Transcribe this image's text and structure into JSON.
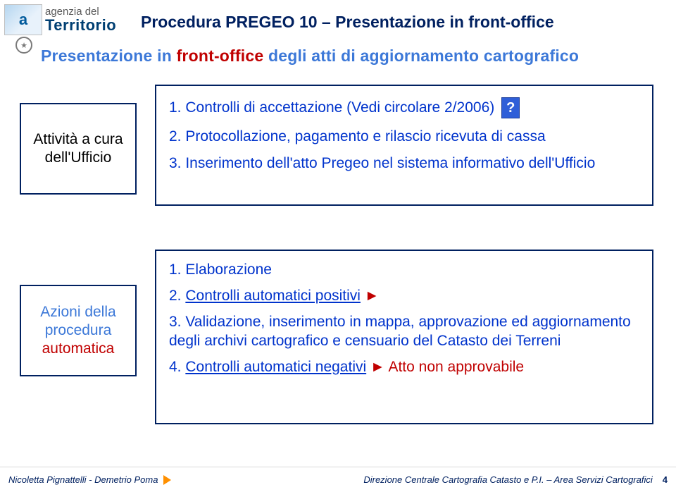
{
  "logo": {
    "line1": "agenzia del",
    "line2": "Territorio",
    "mono": "a"
  },
  "title": "Procedura PREGEO 10 – Presentazione in front-office",
  "subtitle": {
    "pre": "Presentazione in ",
    "red": "front-office",
    "post": " degli atti di aggiornamento cartografico"
  },
  "left1": {
    "l1": "Attività a cura",
    "l2": "dell'Ufficio"
  },
  "box1": {
    "l1": "1. Controlli di accettazione (Vedi circolare 2/2006)",
    "q": "?",
    "l2": "2. Protocollazione, pagamento e rilascio ricevuta di cassa",
    "l3": "3. Inserimento dell'atto Pregeo nel sistema informativo dell'Ufficio"
  },
  "left2": {
    "l1": "Azioni della",
    "l2": "procedura",
    "l3": "automatica"
  },
  "box2": {
    "l1": "1. Elaborazione",
    "l2a": "2. ",
    "l2b": "Controlli automatici positivi",
    "l2c": " ►",
    "l3": "3. Validazione, inserimento in mappa, approvazione ed aggiornamento degli archivi cartografico e censuario del Catasto dei Terreni",
    "l4a": "4. ",
    "l4b": "Controlli automatici negativi",
    "l4c": " ► ",
    "l4d": "Atto non approvabile"
  },
  "footer": {
    "left": "Nicoletta Pignattelli - Demetrio Poma",
    "right": "Direzione Centrale Cartografia Catasto e P.I. – Area Servizi Cartografici",
    "page": "4"
  }
}
